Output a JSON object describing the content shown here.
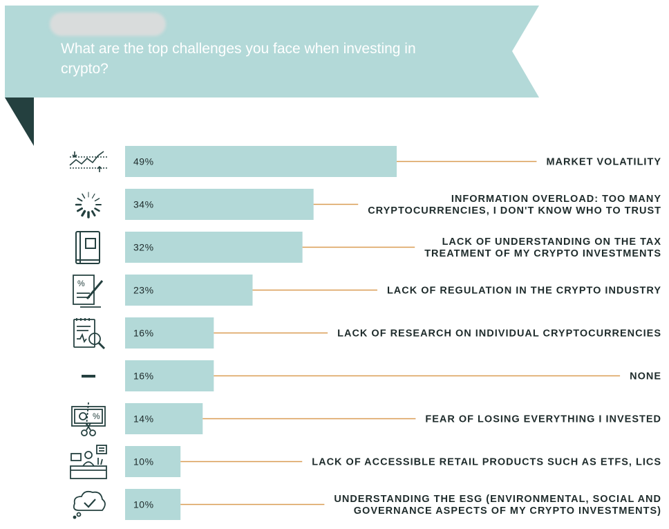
{
  "header": {
    "title": "What are the top challenges you face when investing in crypto?"
  },
  "colors": {
    "banner": "#b3d9d8",
    "banner_tail": "#24403f",
    "bar": "#b3d9d8",
    "leader": "#d99c52",
    "text": "#1e2b2b"
  },
  "chart_data": {
    "type": "bar",
    "orientation": "horizontal",
    "title": "What are the top challenges you face when investing in crypto?",
    "unit": "%",
    "categories": [
      "MARKET VOLATILITY",
      "INFORMATION OVERLOAD: TOO MANY CRYPTOCURRENCIES, I DON'T KNOW WHO TO TRUST",
      "LACK OF UNDERSTANDING ON THE TAX TREATMENT OF MY CRYPTO INVESTMENTS",
      "LACK OF REGULATION IN THE CRYPTO INDUSTRY",
      "LACK OF RESEARCH ON INDIVIDUAL CRYPTOCURRENCIES",
      "NONE",
      "FEAR OF LOSING EVERYTHING I INVESTED",
      "LACK OF ACCESSIBLE RETAIL PRODUCTS SUCH AS ETFS, LICS",
      "UNDERSTANDING THE ESG (ENVIRONMENTAL, SOCIAL AND GOVERNANCE ASPECTS OF MY CRYPTO INVESTMENTS)"
    ],
    "label_lines": [
      [
        "MARKET VOLATILITY"
      ],
      [
        "INFORMATION OVERLOAD: TOO MANY",
        "CRYPTOCURRENCIES, I DON'T KNOW WHO TO TRUST"
      ],
      [
        "LACK OF UNDERSTANDING ON THE TAX",
        "TREATMENT OF MY CRYPTO INVESTMENTS"
      ],
      [
        "LACK OF REGULATION IN THE CRYPTO INDUSTRY"
      ],
      [
        "LACK OF RESEARCH ON INDIVIDUAL CRYPTOCURRENCIES"
      ],
      [
        "NONE"
      ],
      [
        "FEAR OF LOSING EVERYTHING I INVESTED"
      ],
      [
        "LACK OF ACCESSIBLE RETAIL PRODUCTS SUCH AS ETFS, LICS"
      ],
      [
        "UNDERSTANDING THE ESG (ENVIRONMENTAL, SOCIAL AND",
        "GOVERNANCE ASPECTS OF MY CRYPTO INVESTMENTS)"
      ]
    ],
    "values": [
      49,
      34,
      32,
      23,
      16,
      16,
      14,
      10,
      10
    ],
    "value_labels": [
      "49%",
      "34%",
      "32%",
      "23%",
      "16%",
      "16%",
      "14%",
      "10%",
      "10%"
    ],
    "icons": [
      "volatility-chart-icon",
      "loading-spinner-icon",
      "tax-book-icon",
      "regulation-document-icon",
      "research-magnifier-icon",
      "none-dash-icon",
      "losing-money-scissors-icon",
      "retail-desk-icon",
      "esg-cloud-check-icon"
    ]
  }
}
